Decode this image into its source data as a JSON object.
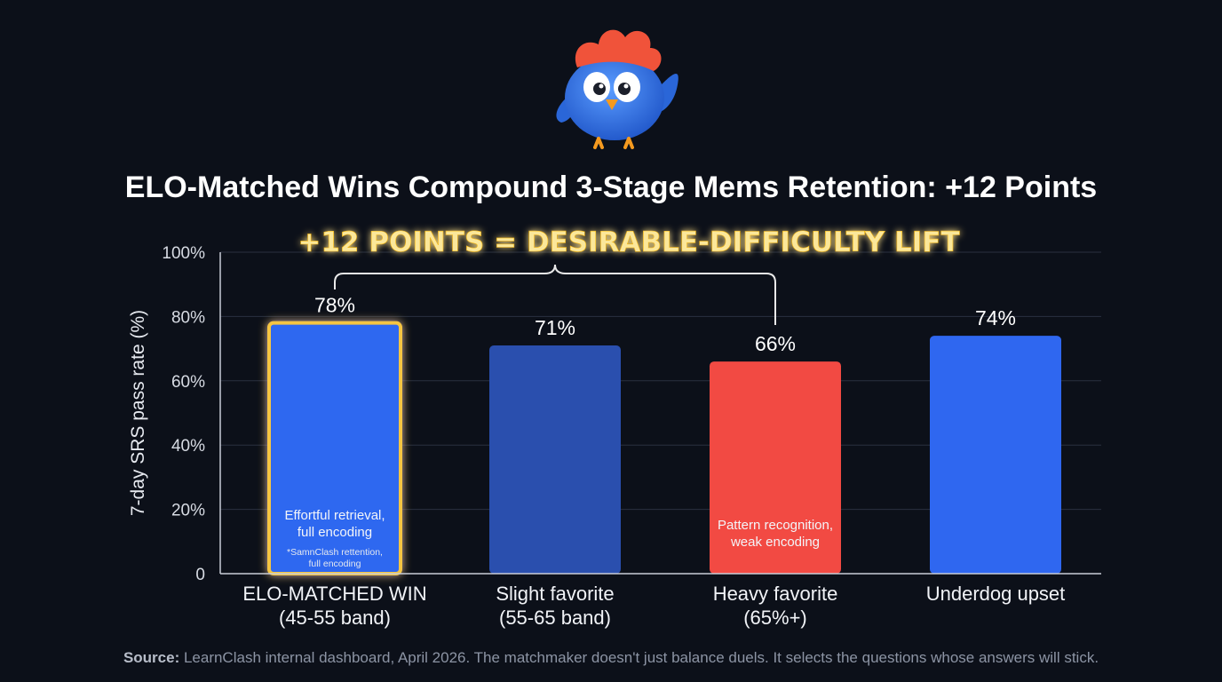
{
  "chart_data": {
    "type": "bar",
    "title": "ELO-Matched Wins Compound 3-Stage Mems Retention: +12 Points",
    "ylabel": "7-day SRS pass rate (%)",
    "ylim": [
      0,
      100
    ],
    "yticks": [
      "0",
      "20%",
      "40%",
      "60%",
      "80%",
      "100%"
    ],
    "ytick_values": [
      0,
      20,
      40,
      60,
      80,
      100
    ],
    "grid": true,
    "categories": [
      [
        "ELO-MATCHED WIN",
        "(45-55 band)"
      ],
      [
        "Slight favorite",
        "(55-65 band)"
      ],
      [
        "Heavy favorite",
        "(65%+)"
      ],
      [
        "Underdog upset"
      ]
    ],
    "values": [
      78,
      71,
      66,
      74
    ],
    "value_labels": [
      "78%",
      "71%",
      "66%",
      "74%"
    ],
    "bar_colors": [
      "#2f67f0",
      "#2a4fae",
      "#f24a43",
      "#2f67f0"
    ],
    "highlight_color": "#f5c542",
    "bar_annotations": [
      {
        "bar": 0,
        "lines": [
          "Effortful retrieval,",
          "full encoding"
        ],
        "small_lines": [
          "*SamnClash rettention,",
          "full encoding"
        ]
      },
      {
        "bar": 2,
        "lines": [
          "Pattern recognition,",
          "weak encoding"
        ],
        "small_lines": []
      }
    ],
    "callout": {
      "text": "+12 POINTS = DESIRABLE-DIFFICULTY LIFT",
      "from_bar": 0,
      "to_bar": 2,
      "color": "#fbe79a",
      "glow": "#f5b400"
    }
  },
  "source": {
    "label": "Source:",
    "text": " LearnClash internal dashboard, April 2026. The matchmaker doesn't just balance duels. It selects the questions whose answers will stick."
  },
  "mascot": {
    "icon": "blue-bird-mascot-icon",
    "colors": {
      "body": "#2f74e6",
      "crest": "#f0533a",
      "beak": "#f59a1f"
    }
  }
}
